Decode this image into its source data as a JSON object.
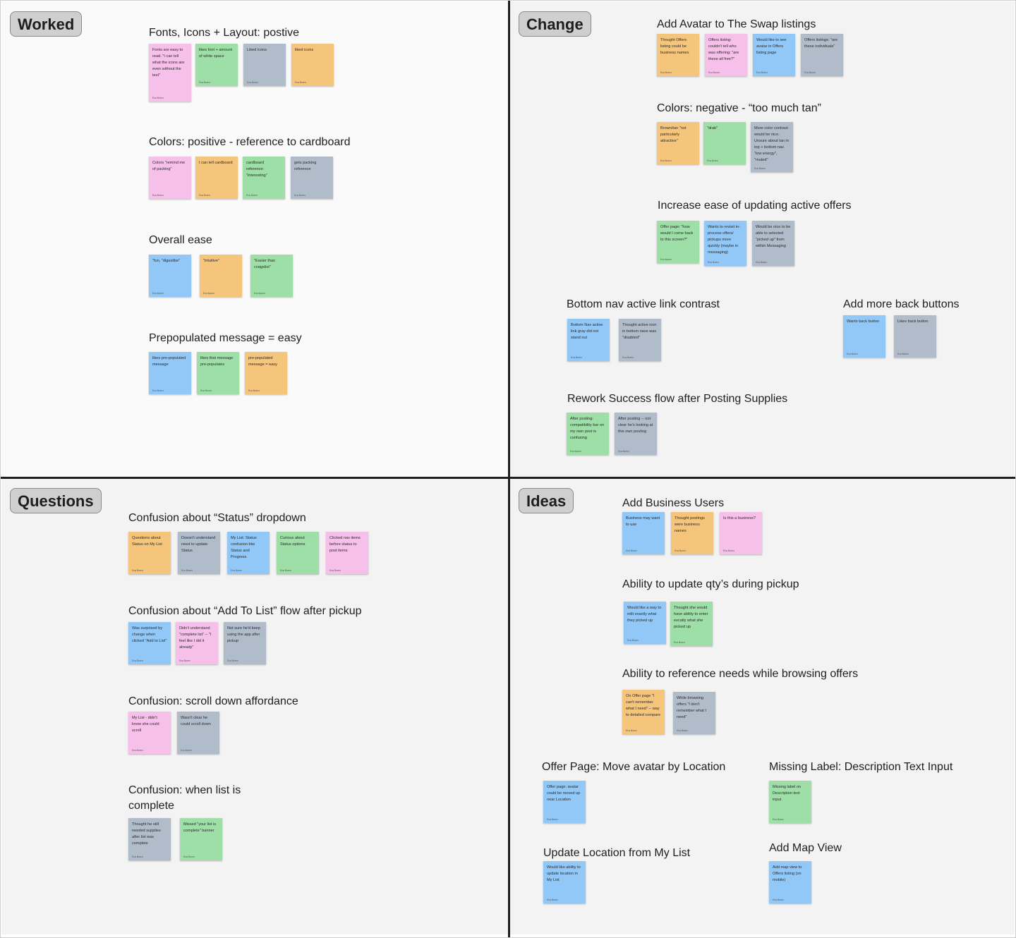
{
  "sections": {
    "worked": {
      "tag": "Worked"
    },
    "change": {
      "tag": "Change"
    },
    "questions": {
      "tag": "Questions"
    },
    "ideas": {
      "tag": "Ideas"
    }
  },
  "author": "Eva Boren",
  "colors": {
    "pink": "#f6c0ea",
    "green": "#9ddfa7",
    "gray": "#b1bccb",
    "orange": "#f5c57c",
    "blue": "#91c8f8",
    "divider": "#1e1e1e"
  },
  "clusters": {
    "w1": {
      "title": "Fonts, Icons + Layout: postive",
      "notes": [
        "Fonts are easy to read. \"I can tell what the icons are even without the text\"",
        "likes font + amount of white space",
        "Liked icons",
        "liked icons"
      ]
    },
    "w2": {
      "title": "Colors: positive - reference to cardboard",
      "notes": [
        "Colors \"remind me of packing\"",
        "I can tell cardboard",
        "cardboard reference: \"interesting\"",
        "gets packing reference"
      ]
    },
    "w3": {
      "title": "Overall ease",
      "notes": [
        "\"fun, \"digestibe\"",
        "\"intuitive\"",
        "\"Easier than craigslist\""
      ]
    },
    "w4": {
      "title": "Prepopulated message = easy",
      "notes": [
        "likes pre-populated message",
        "likes that message pre-populates",
        "pre-populated message = easy"
      ]
    },
    "c1": {
      "title": "Add Avatar to The Swap listings",
      "notes": [
        "Thought Offers listing could be business names",
        "Offers listing: couldn't tell who was offering: \"are these all free?\"",
        "Would like to see avatar in Offers listing page",
        "Offers listings: \"are these individuals\""
      ]
    },
    "c2": {
      "title": "Colors: negative - “too much tan”",
      "notes": [
        "Brown/tan \"not particularly attractive\"",
        "\"drab\"",
        "More color contrast would be nice. Unsure about tan in top + bottom nav. \"low energy\", \"muted\""
      ]
    },
    "c3": {
      "title": "Increase ease of updating active offers",
      "notes": [
        "Offer page: \"how would I come back to this screen?\"",
        "Wants to revisit in-process offers/ pickups more quickly (maybe in messaging)",
        "Would be nice to be able to selected \"picked up\" from within Messaging"
      ]
    },
    "c4": {
      "title": "Bottom nav active link contrast",
      "notes": [
        "Bottom Nav active link gray did not stand out",
        "Thought active icon in bottom nave was \"disabled\""
      ]
    },
    "c5": {
      "title": "Add more back buttons",
      "notes": [
        "Wants back button",
        "Likes back button"
      ]
    },
    "c6": {
      "title": "Rework Success flow after Posting Supplies",
      "notes": [
        "After posting: compatibility bar on my own post is confusing",
        "After posting -- not clear he's looking at this own posting"
      ]
    },
    "q1": {
      "title": "Confusion about “Status” dropdown",
      "notes": [
        "Questions about Status on My List",
        "Doesn't understand need to update Status",
        "My List: Status confusion btw Status and Progress",
        "Curious about Status options",
        "Clicked nav items before status to post items"
      ]
    },
    "q2": {
      "title": "Confusion about “Add To List” flow after pickup",
      "notes": [
        "Was surprised by change when clicked \"Add to List\"",
        "Didn't understand \"complete list\" -- \"I feel like I did it already\"",
        "Not sure he'd keep using the app after pickup"
      ]
    },
    "q3": {
      "title": "Confusion: scroll down affordance",
      "notes": [
        "My List - didn't know she could scroll",
        "Wasn't clear he could scroll down"
      ]
    },
    "q4": {
      "title": "Confusion: when list is complete",
      "notes": [
        "Thought he still needed supplies after list was complete",
        "Missed \"your list is complete\" banner"
      ]
    },
    "i1": {
      "title": "Add Business Users",
      "notes": [
        "Business may want to use",
        "Thought postings were business names",
        "Is this a business?"
      ]
    },
    "i2": {
      "title": "Ability to update qty’s during pickup",
      "notes": [
        "Would like a way to edit exactly what they picked up",
        "Thought she would have ability to enter excatly what she picked up"
      ]
    },
    "i3": {
      "title": "Ability to reference needs while browsing offers",
      "notes": [
        "On Offer page \"I can't remember what I need\" -- way to detailed compare",
        "While browsing offers \"I don't remember what I need\""
      ]
    },
    "i4": {
      "title": "Offer Page: Move avatar by Location",
      "notes": [
        "Offer page: avatar could be moved up near Location"
      ]
    },
    "i5": {
      "title": "Missing Label: Description Text Input",
      "notes": [
        "Missing label on Description text input"
      ]
    },
    "i6": {
      "title": "Update Location from My List",
      "notes": [
        "Would like ability to update location in My List"
      ]
    },
    "i7": {
      "title": "Add Map View",
      "notes": [
        "Add map view to Offers listing (on mobile)"
      ]
    }
  }
}
